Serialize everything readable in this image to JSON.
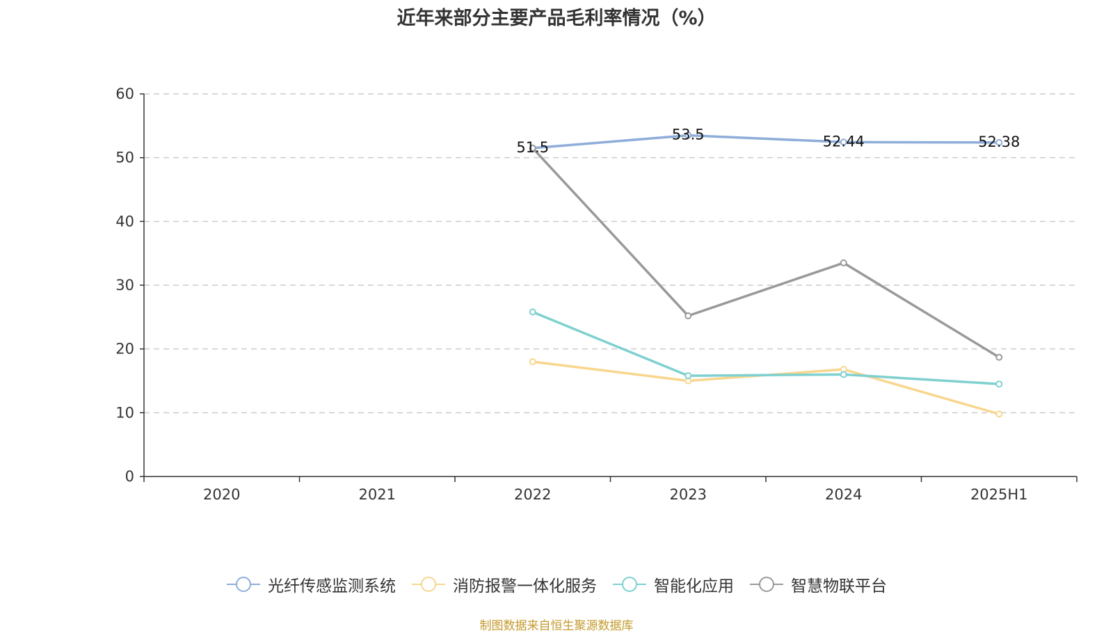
{
  "source_note": "制图数据来自恒生聚源数据库",
  "chart_data": {
    "type": "line",
    "title": "近年来部分主要产品毛利率情况（%）",
    "categories": [
      "2020",
      "2021",
      "2022",
      "2023",
      "2024",
      "2025H1"
    ],
    "ylim": [
      0,
      60
    ],
    "yticks": [
      0,
      10,
      20,
      30,
      40,
      50,
      60
    ],
    "grid": true,
    "legend_position": "bottom",
    "series": [
      {
        "name": "光纤传感监测系统",
        "color": "#8fadd9",
        "values": [
          null,
          null,
          51.5,
          53.5,
          52.44,
          52.38
        ],
        "labels": [
          null,
          null,
          "51.5",
          "53.5",
          "52.44",
          "52.38"
        ]
      },
      {
        "name": "消防报警一体化服务",
        "color": "#f8d68e",
        "values": [
          null,
          null,
          18.0,
          15.0,
          16.8,
          9.8
        ]
      },
      {
        "name": "智能化应用",
        "color": "#7fd0d0",
        "values": [
          null,
          null,
          25.8,
          15.8,
          16.0,
          14.5
        ]
      },
      {
        "name": "智慧物联平台",
        "color": "#999999",
        "values": [
          null,
          null,
          51.5,
          25.2,
          33.5,
          18.7
        ]
      }
    ]
  }
}
